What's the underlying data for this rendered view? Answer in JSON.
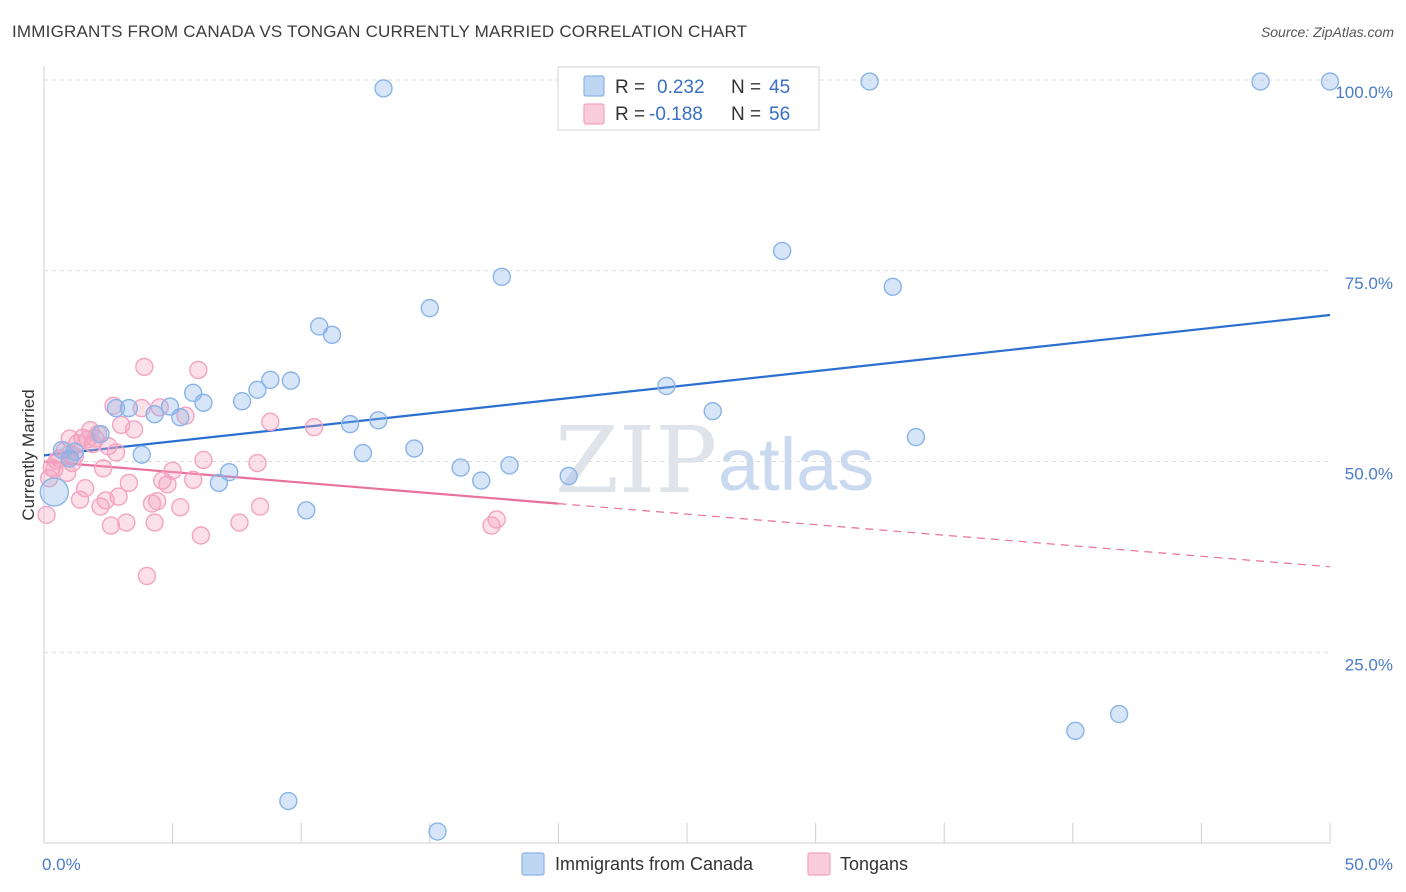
{
  "title": "IMMIGRANTS FROM CANADA VS TONGAN CURRENTLY MARRIED CORRELATION CHART",
  "source": "Source: ZipAtlas.com",
  "watermark": {
    "zip": "ZIP",
    "atlas": "atlas"
  },
  "chart_data": {
    "type": "scatter",
    "ylabel": "Currently Married",
    "xlim": [
      0,
      50
    ],
    "ylim": [
      0,
      100
    ],
    "x_tick_labels": [
      "0.0%",
      "50.0%"
    ],
    "y_ticks": [
      {
        "value": 25,
        "label": "25.0%"
      },
      {
        "value": 50,
        "label": "50.0%"
      },
      {
        "value": 75,
        "label": "75.0%"
      },
      {
        "value": 100,
        "label": "100.0%"
      }
    ],
    "grid": true,
    "legend": {
      "placement": "top-center",
      "entries": [
        {
          "r_label": "R =",
          "r_value": "0.232",
          "n_label": "N =",
          "n_value": "45"
        },
        {
          "r_label": "R =",
          "r_value": "-0.188",
          "n_label": "N =",
          "n_value": "56"
        }
      ]
    },
    "series": [
      {
        "name": "Immigrants from Canada",
        "color": "#8ab4e8",
        "line_color": "#2a6fcf",
        "trend": {
          "x0": 0,
          "y0": 50.8,
          "x1": 50,
          "y1": 69.2,
          "solid_until": 50
        },
        "points": [
          [
            0.4,
            46.0
          ],
          [
            0.7,
            51.5
          ],
          [
            1.0,
            50.4
          ],
          [
            1.2,
            51.3
          ],
          [
            2.2,
            53.6
          ],
          [
            2.8,
            57.0
          ],
          [
            3.3,
            57.0
          ],
          [
            3.8,
            50.9
          ],
          [
            4.3,
            56.2
          ],
          [
            4.9,
            57.2
          ],
          [
            5.3,
            55.8
          ],
          [
            5.8,
            59.0
          ],
          [
            6.2,
            57.7
          ],
          [
            6.8,
            47.2
          ],
          [
            7.2,
            48.6
          ],
          [
            7.7,
            57.9
          ],
          [
            8.3,
            59.4
          ],
          [
            8.8,
            60.7
          ],
          [
            9.6,
            60.6
          ],
          [
            10.2,
            43.6
          ],
          [
            10.7,
            67.7
          ],
          [
            11.2,
            66.6
          ],
          [
            11.9,
            54.9
          ],
          [
            12.4,
            51.1
          ],
          [
            13.0,
            55.4
          ],
          [
            13.2,
            98.9
          ],
          [
            14.4,
            51.7
          ],
          [
            15.0,
            70.1
          ],
          [
            16.2,
            49.2
          ],
          [
            17.0,
            47.5
          ],
          [
            17.8,
            74.2
          ],
          [
            18.1,
            49.5
          ],
          [
            20.4,
            48.1
          ],
          [
            24.2,
            59.9
          ],
          [
            26.0,
            56.6
          ],
          [
            28.7,
            77.6
          ],
          [
            32.1,
            99.8
          ],
          [
            33.0,
            72.9
          ],
          [
            33.9,
            53.2
          ],
          [
            40.1,
            14.7
          ],
          [
            41.8,
            16.9
          ],
          [
            47.3,
            99.8
          ],
          [
            50.0,
            99.8
          ],
          [
            9.5,
            5.5
          ],
          [
            15.3,
            1.5
          ]
        ]
      },
      {
        "name": "Tongans",
        "color": "#f4a3c0",
        "line_color": "#e8709c",
        "trend": {
          "x0": 0,
          "y0": 50.0,
          "x1": 50,
          "y1": 36.2,
          "solid_until": 20
        },
        "points": [
          [
            0.1,
            43.0
          ],
          [
            0.2,
            47.8
          ],
          [
            0.3,
            49.2
          ],
          [
            0.5,
            50.1
          ],
          [
            0.6,
            50.4
          ],
          [
            0.8,
            51.4
          ],
          [
            0.9,
            48.5
          ],
          [
            1.0,
            53.0
          ],
          [
            1.1,
            49.8
          ],
          [
            1.3,
            52.4
          ],
          [
            1.4,
            45.0
          ],
          [
            1.5,
            53.1
          ],
          [
            1.6,
            46.5
          ],
          [
            1.7,
            52.9
          ],
          [
            1.8,
            54.1
          ],
          [
            1.9,
            52.3
          ],
          [
            2.0,
            53.0
          ],
          [
            2.1,
            53.6
          ],
          [
            2.2,
            44.1
          ],
          [
            2.3,
            49.1
          ],
          [
            2.4,
            44.9
          ],
          [
            2.5,
            52.0
          ],
          [
            2.6,
            41.6
          ],
          [
            2.7,
            57.3
          ],
          [
            2.8,
            51.2
          ],
          [
            3.0,
            54.8
          ],
          [
            3.2,
            42.0
          ],
          [
            3.3,
            47.2
          ],
          [
            3.5,
            54.2
          ],
          [
            3.8,
            57.0
          ],
          [
            3.9,
            62.4
          ],
          [
            4.0,
            35.0
          ],
          [
            4.2,
            44.5
          ],
          [
            4.3,
            42.0
          ],
          [
            4.4,
            44.8
          ],
          [
            4.5,
            57.1
          ],
          [
            4.6,
            47.5
          ],
          [
            4.8,
            47.0
          ],
          [
            5.0,
            48.8
          ],
          [
            5.3,
            44.0
          ],
          [
            5.5,
            56.0
          ],
          [
            5.8,
            47.6
          ],
          [
            6.0,
            62.0
          ],
          [
            6.1,
            40.3
          ],
          [
            6.2,
            50.2
          ],
          [
            7.6,
            42.0
          ],
          [
            8.3,
            49.8
          ],
          [
            8.4,
            44.1
          ],
          [
            8.8,
            55.2
          ],
          [
            10.5,
            54.5
          ],
          [
            17.4,
            41.6
          ],
          [
            17.6,
            42.4
          ],
          [
            1.0,
            51.0
          ],
          [
            0.4,
            49.0
          ],
          [
            2.9,
            45.4
          ],
          [
            1.2,
            50.7
          ]
        ]
      }
    ]
  }
}
